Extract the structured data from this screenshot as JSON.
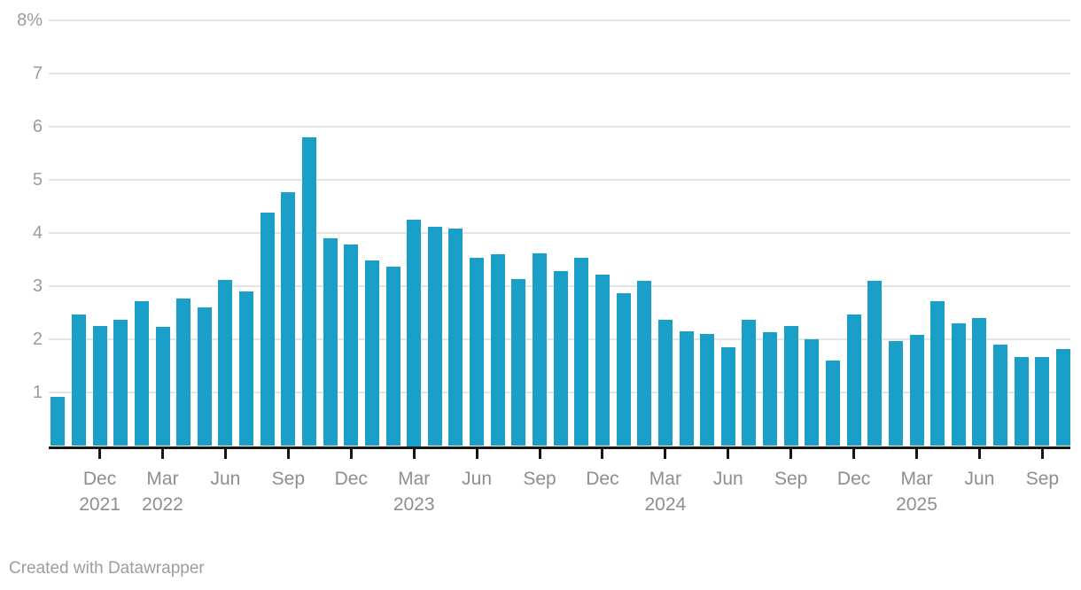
{
  "chart_data": {
    "type": "bar",
    "title": "",
    "xlabel": "",
    "ylabel": "",
    "unit": "%",
    "ylim": [
      0,
      8
    ],
    "grid": true,
    "x": [
      "Oct 2021",
      "Nov 2021",
      "Dec 2021",
      "Jan 2022",
      "Feb 2022",
      "Mar 2022",
      "Apr 2022",
      "May 2022",
      "Jun 2022",
      "Jul 2022",
      "Aug 2022",
      "Sep 2022",
      "Oct 2022",
      "Nov 2022",
      "Dec 2022",
      "Jan 2023",
      "Feb 2023",
      "Mar 2023",
      "Apr 2023",
      "May 2023",
      "Jun 2023",
      "Jul 2023",
      "Aug 2023",
      "Sep 2023",
      "Oct 2023",
      "Nov 2023",
      "Dec 2023",
      "Jan 2024",
      "Feb 2024",
      "Mar 2024",
      "Apr 2024",
      "May 2024",
      "Jun 2024",
      "Jul 2024",
      "Aug 2024",
      "Sep 2024",
      "Oct 2024",
      "Nov 2024",
      "Dec 2024",
      "Jan 2025",
      "Feb 2025",
      "Mar 2025",
      "Apr 2025",
      "May 2025",
      "Jun 2025",
      "Jul 2025",
      "Aug 2025",
      "Sep 2025",
      "Oct 2025"
    ],
    "values": [
      0.93,
      2.48,
      2.26,
      2.37,
      2.72,
      2.24,
      2.78,
      2.61,
      3.12,
      2.9,
      4.38,
      4.77,
      5.81,
      3.9,
      3.78,
      3.48,
      3.37,
      4.25,
      4.12,
      4.08,
      3.53,
      3.61,
      3.14,
      3.62,
      3.28,
      3.53,
      3.22,
      2.88,
      3.11,
      2.38,
      2.15,
      2.11,
      1.86,
      2.38,
      2.14,
      2.26,
      2.01,
      1.61,
      2.48,
      3.11,
      1.97,
      2.09,
      2.73,
      2.3,
      2.4,
      1.91,
      1.68,
      1.67,
      1.82
    ],
    "y_axis": {
      "labels": [
        {
          "value": 8,
          "label": "8%"
        },
        {
          "value": 7,
          "label": "7"
        },
        {
          "value": 6,
          "label": "6"
        },
        {
          "value": 5,
          "label": "5"
        },
        {
          "value": 4,
          "label": "4"
        },
        {
          "value": 3,
          "label": "3"
        },
        {
          "value": 2,
          "label": "2"
        },
        {
          "value": 1,
          "label": "1"
        }
      ]
    },
    "x_axis": {
      "ticks": [
        {
          "index": 2,
          "month": "Dec",
          "year": "2021"
        },
        {
          "index": 5,
          "month": "Mar",
          "year": "2022"
        },
        {
          "index": 8,
          "month": "Jun"
        },
        {
          "index": 11,
          "month": "Sep"
        },
        {
          "index": 14,
          "month": "Dec"
        },
        {
          "index": 17,
          "month": "Mar",
          "year": "2023"
        },
        {
          "index": 20,
          "month": "Jun"
        },
        {
          "index": 23,
          "month": "Sep"
        },
        {
          "index": 26,
          "month": "Dec"
        },
        {
          "index": 29,
          "month": "Mar",
          "year": "2024"
        },
        {
          "index": 32,
          "month": "Jun"
        },
        {
          "index": 35,
          "month": "Sep"
        },
        {
          "index": 38,
          "month": "Dec"
        },
        {
          "index": 41,
          "month": "Mar",
          "year": "2025"
        },
        {
          "index": 44,
          "month": "Jun"
        },
        {
          "index": 47,
          "month": "Sep"
        }
      ]
    },
    "colors": {
      "bar": "#1aa0c8",
      "gridline": "#e4e4e4",
      "axis": "#161616",
      "y_label": "#9b9b9b",
      "x_label": "#8e8e8e"
    },
    "legend": null
  },
  "footer": {
    "credit": "Created with Datawrapper"
  }
}
